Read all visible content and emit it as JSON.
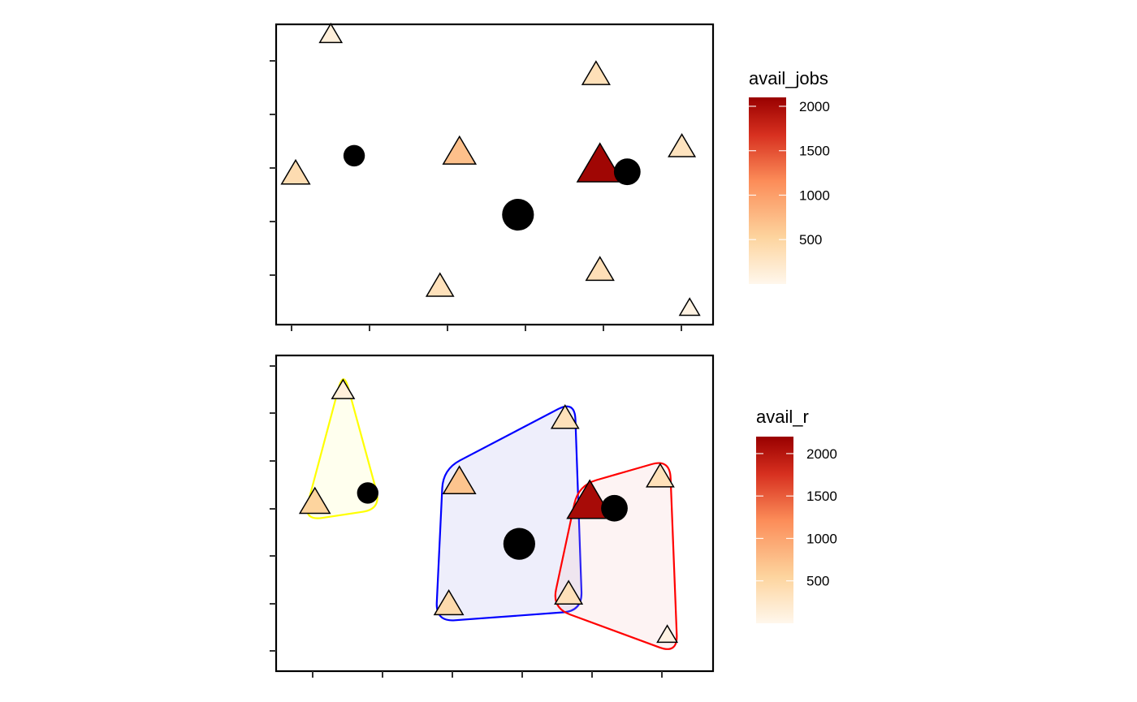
{
  "chart_data": [
    {
      "type": "scatter",
      "title": "",
      "xlabel": "",
      "ylabel": "",
      "xlim": [
        0,
        11.2
      ],
      "ylim": [
        0,
        11.2
      ],
      "grid": false,
      "legend": {
        "title": "avail_jobs",
        "position": "right",
        "ticks": [
          500,
          1000,
          1500,
          2000
        ],
        "range": [
          0,
          2100
        ]
      },
      "demand_points": [
        {
          "x": 2.0,
          "y": 6.3,
          "size": 1
        },
        {
          "x": 6.2,
          "y": 4.1,
          "size": 3
        },
        {
          "x": 9.0,
          "y": 5.7,
          "size": 2
        }
      ],
      "supply_points": [
        {
          "x": 1.4,
          "y": 10.8,
          "avail": 120
        },
        {
          "x": 0.5,
          "y": 5.6,
          "avail": 400
        },
        {
          "x": 4.7,
          "y": 6.4,
          "avail": 700
        },
        {
          "x": 8.2,
          "y": 9.3,
          "avail": 350
        },
        {
          "x": 8.3,
          "y": 2.0,
          "avail": 360
        },
        {
          "x": 4.2,
          "y": 1.4,
          "avail": 330
        },
        {
          "x": 10.4,
          "y": 6.6,
          "avail": 300
        },
        {
          "x": 8.3,
          "y": 5.9,
          "avail": 2050
        },
        {
          "x": 10.6,
          "y": 0.6,
          "avail": 60
        }
      ],
      "colors": {
        "low": "#fff7ec",
        "mid1": "#fdd49e",
        "mid2": "#fc8d59",
        "high": "#990000"
      }
    },
    {
      "type": "scatter",
      "title": "",
      "xlabel": "",
      "ylabel": "",
      "xlim": [
        0,
        12.4
      ],
      "ylim": [
        0,
        12.4
      ],
      "grid": false,
      "legend": {
        "title": "avail_r",
        "position": "right",
        "ticks": [
          500,
          1000,
          1500,
          2000
        ],
        "range": [
          0,
          2200
        ]
      },
      "demand_points": [
        {
          "x": 2.6,
          "y": 7.0,
          "size": 1
        },
        {
          "x": 6.9,
          "y": 5.0,
          "size": 3
        },
        {
          "x": 9.6,
          "y": 6.4,
          "size": 2
        }
      ],
      "supply_points": [
        {
          "x": 1.9,
          "y": 11.0,
          "avail": 130
        },
        {
          "x": 1.1,
          "y": 6.6,
          "avail": 550
        },
        {
          "x": 5.2,
          "y": 7.4,
          "avail": 700
        },
        {
          "x": 8.2,
          "y": 9.9,
          "avail": 350
        },
        {
          "x": 8.3,
          "y": 3.0,
          "avail": 360
        },
        {
          "x": 4.9,
          "y": 2.6,
          "avail": 450
        },
        {
          "x": 10.9,
          "y": 7.6,
          "avail": 350
        },
        {
          "x": 8.9,
          "y": 6.6,
          "avail": 2100
        },
        {
          "x": 11.1,
          "y": 1.4,
          "avail": 60
        }
      ],
      "catchments": [
        {
          "color": "#ffff00",
          "fill": "rgba(255,255,160,0.18)",
          "points": [
            [
              1.9,
              11.0
            ],
            [
              1.1,
              6.6
            ],
            [
              2.6,
              7.0
            ]
          ]
        },
        {
          "color": "#0000ff",
          "fill": "rgba(140,140,230,0.15)",
          "points": [
            [
              5.2,
              7.4
            ],
            [
              8.2,
              9.9
            ],
            [
              8.3,
              3.0
            ],
            [
              4.9,
              2.6
            ]
          ]
        },
        {
          "color": "#ff0000",
          "fill": "rgba(245,190,190,0.18)",
          "points": [
            [
              8.9,
              6.6
            ],
            [
              10.9,
              7.6
            ],
            [
              11.1,
              1.4
            ],
            [
              8.3,
              3.0
            ]
          ]
        }
      ],
      "colors": {
        "low": "#fff7ec",
        "mid1": "#fdd49e",
        "mid2": "#fc8d59",
        "high": "#990000"
      }
    }
  ]
}
